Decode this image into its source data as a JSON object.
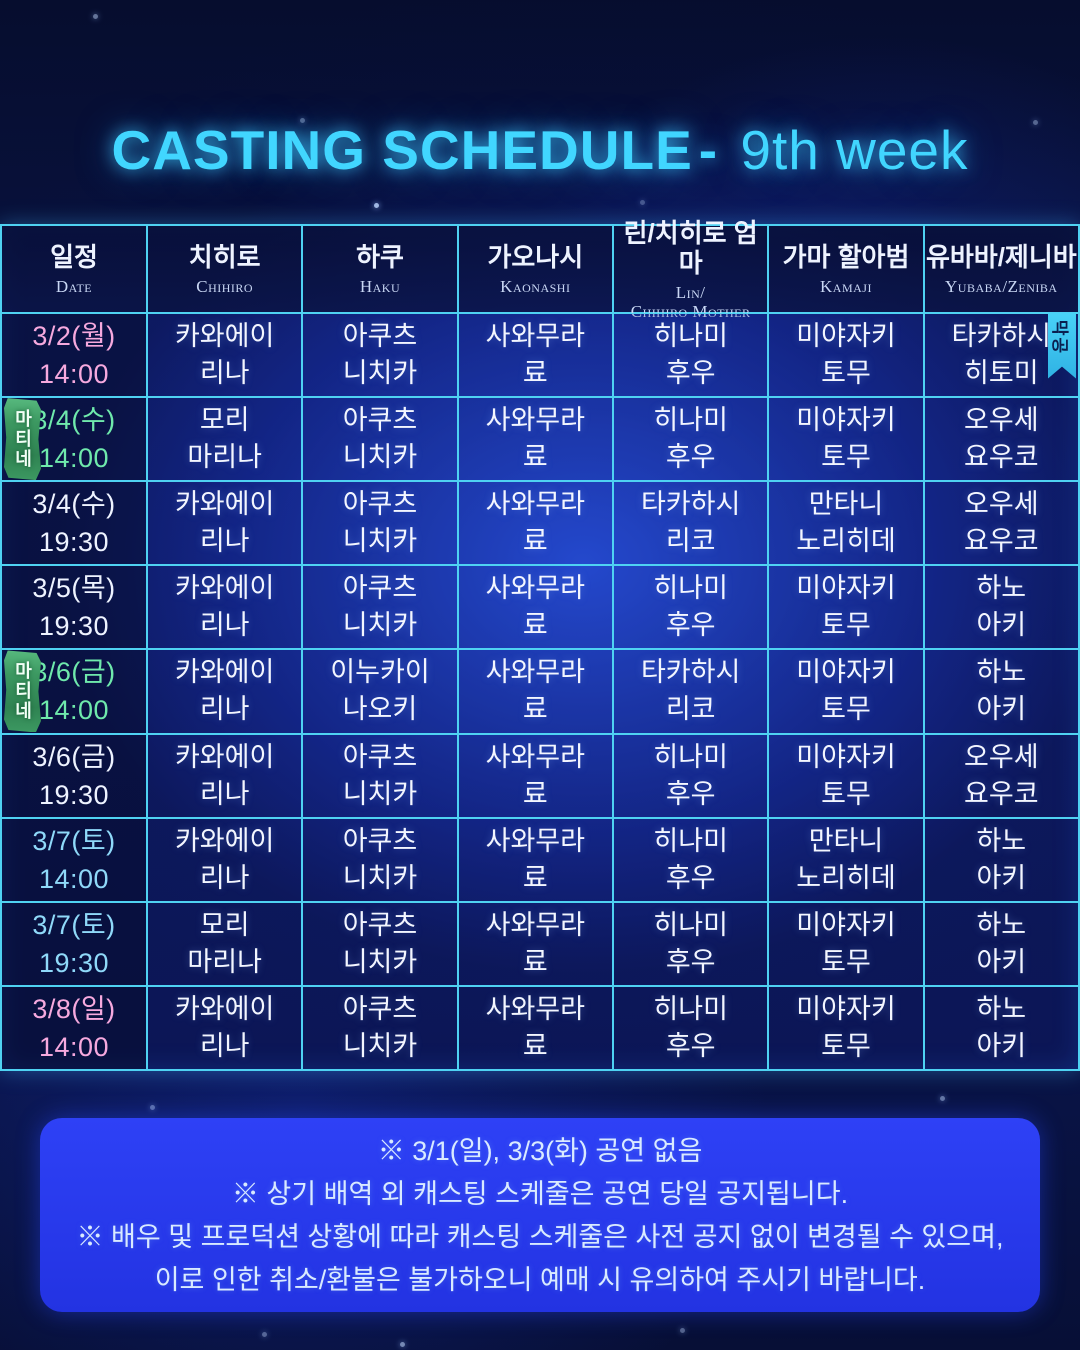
{
  "title": {
    "main": "CASTING SCHEDULE",
    "sep": "-",
    "week": "9th week"
  },
  "colors": {
    "accent_title": "#41d6ff",
    "table_border": "#4fd2f2",
    "footer_bg": "#2a3bf0",
    "date_pink": "#f6a9de",
    "date_green": "#6fe9ac",
    "date_cyan": "#8fd9f9",
    "date_white": "#eef3ff",
    "badge_matinee_green": "#3c9861",
    "badge_final_cyan": "#3fc8f0"
  },
  "badges": {
    "matinee": "마티네",
    "final": "막공"
  },
  "table": {
    "headers": [
      {
        "kr": "일정",
        "en": "Date"
      },
      {
        "kr": "치히로",
        "en": "Chihiro"
      },
      {
        "kr": "하쿠",
        "en": "Haku"
      },
      {
        "kr": "가오나시",
        "en": "Kaonashi"
      },
      {
        "kr": "린/치히로 엄마",
        "en": "Lin/\nChihiro Mother"
      },
      {
        "kr": "가마 할아범",
        "en": "Kamaji"
      },
      {
        "kr": "유바바/제니바",
        "en": "Yubaba/Zeniba"
      }
    ],
    "rows": [
      {
        "d": "3/2(월)",
        "t": "14:00",
        "color": "pink",
        "badge": "final",
        "cast": [
          "카와에이\n리나",
          "아쿠츠\n니치카",
          "사와무라\n료",
          "히나미\n후우",
          "미야자키\n토무",
          "타카하시\n히토미"
        ]
      },
      {
        "d": "3/4(수)",
        "t": "14:00",
        "color": "green",
        "badge": "matinee",
        "cast": [
          "모리\n마리나",
          "아쿠츠\n니치카",
          "사와무라\n료",
          "히나미\n후우",
          "미야자키\n토무",
          "오우세\n요우코"
        ]
      },
      {
        "d": "3/4(수)",
        "t": "19:30",
        "color": "white",
        "badge": null,
        "cast": [
          "카와에이\n리나",
          "아쿠츠\n니치카",
          "사와무라\n료",
          "타카하시\n리코",
          "만타니\n노리히데",
          "오우세\n요우코"
        ]
      },
      {
        "d": "3/5(목)",
        "t": "19:30",
        "color": "white",
        "badge": null,
        "cast": [
          "카와에이\n리나",
          "아쿠츠\n니치카",
          "사와무라\n료",
          "히나미\n후우",
          "미야자키\n토무",
          "하노\n아키"
        ]
      },
      {
        "d": "3/6(금)",
        "t": "14:00",
        "color": "green",
        "badge": "matinee",
        "cast": [
          "카와에이\n리나",
          "이누카이\n나오키",
          "사와무라\n료",
          "타카하시\n리코",
          "미야자키\n토무",
          "하노\n아키"
        ]
      },
      {
        "d": "3/6(금)",
        "t": "19:30",
        "color": "white",
        "badge": null,
        "cast": [
          "카와에이\n리나",
          "아쿠츠\n니치카",
          "사와무라\n료",
          "히나미\n후우",
          "미야자키\n토무",
          "오우세\n요우코"
        ]
      },
      {
        "d": "3/7(토)",
        "t": "14:00",
        "color": "cyan",
        "badge": null,
        "cast": [
          "카와에이\n리나",
          "아쿠츠\n니치카",
          "사와무라\n료",
          "히나미\n후우",
          "만타니\n노리히데",
          "하노\n아키"
        ]
      },
      {
        "d": "3/7(토)",
        "t": "19:30",
        "color": "cyan",
        "badge": null,
        "cast": [
          "모리\n마리나",
          "아쿠츠\n니치카",
          "사와무라\n료",
          "히나미\n후우",
          "미야자키\n토무",
          "하노\n아키"
        ]
      },
      {
        "d": "3/8(일)",
        "t": "14:00",
        "color": "pink",
        "badge": null,
        "cast": [
          "카와에이\n리나",
          "아쿠츠\n니치카",
          "사와무라\n료",
          "히나미\n후우",
          "미야자키\n토무",
          "하노\n아키"
        ]
      }
    ]
  },
  "notes": [
    "※ 3/1(일), 3/3(화) 공연 없음",
    "※ 상기 배역 외 캐스팅 스케줄은 공연 당일 공지됩니다.",
    "※ 배우 및 프로덕션 상황에 따라 캐스팅 스케줄은 사전 공지 없이 변경될 수 있으며,",
    "이로 인한 취소/환불은 불가하오니 예매 시 유의하여 주시기 바랍니다."
  ]
}
